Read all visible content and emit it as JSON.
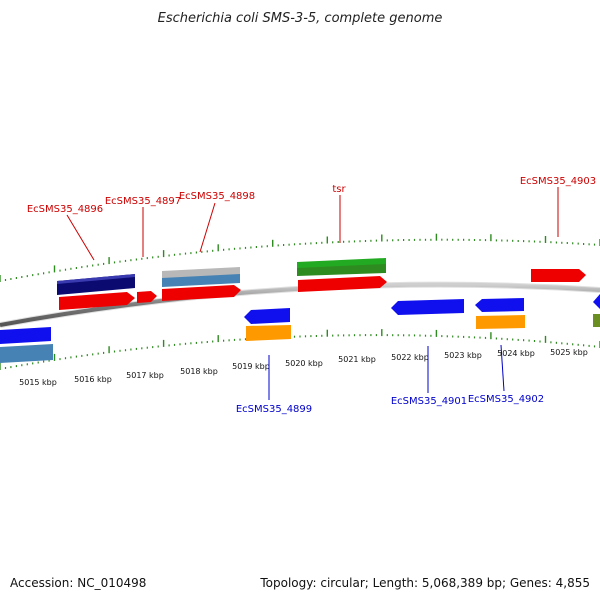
{
  "title": "Escherichia coli SMS-3-5, complete genome",
  "scale_labels": [
    "5015 kbp",
    "5016 kbp",
    "5017 kbp",
    "5018 kbp",
    "5019 kbp",
    "5020 kbp",
    "5021 kbp",
    "5022 kbp",
    "5023 kbp",
    "5024 kbp",
    "5025 kbp"
  ],
  "genes_top": [
    "EcSMS35_4896",
    "EcSMS35_4897",
    "EcSMS35_4898",
    "tsr",
    "EcSMS35_4903"
  ],
  "genes_bottom": [
    "EcSMS35_4899",
    "EcSMS35_4901",
    "EcSMS35_4902"
  ],
  "footer": {
    "accession": "Accession: NC_010498",
    "topology": "Topology: circular; Length: 5,068,389 bp; Genes: 4,855"
  },
  "colors": {
    "label_top": "#cc0000",
    "label_bottom": "#0000cc",
    "tick": "#2e8b20",
    "backbone": "#888888",
    "cds_red": "#ee0000",
    "cds_blue": "#1010ee",
    "navy": "#0a0a70",
    "steel": "#4682b4",
    "gray": "#b0b0b0",
    "green": "#22aa22",
    "orange": "#ff9900",
    "olive": "#6b8e23"
  }
}
